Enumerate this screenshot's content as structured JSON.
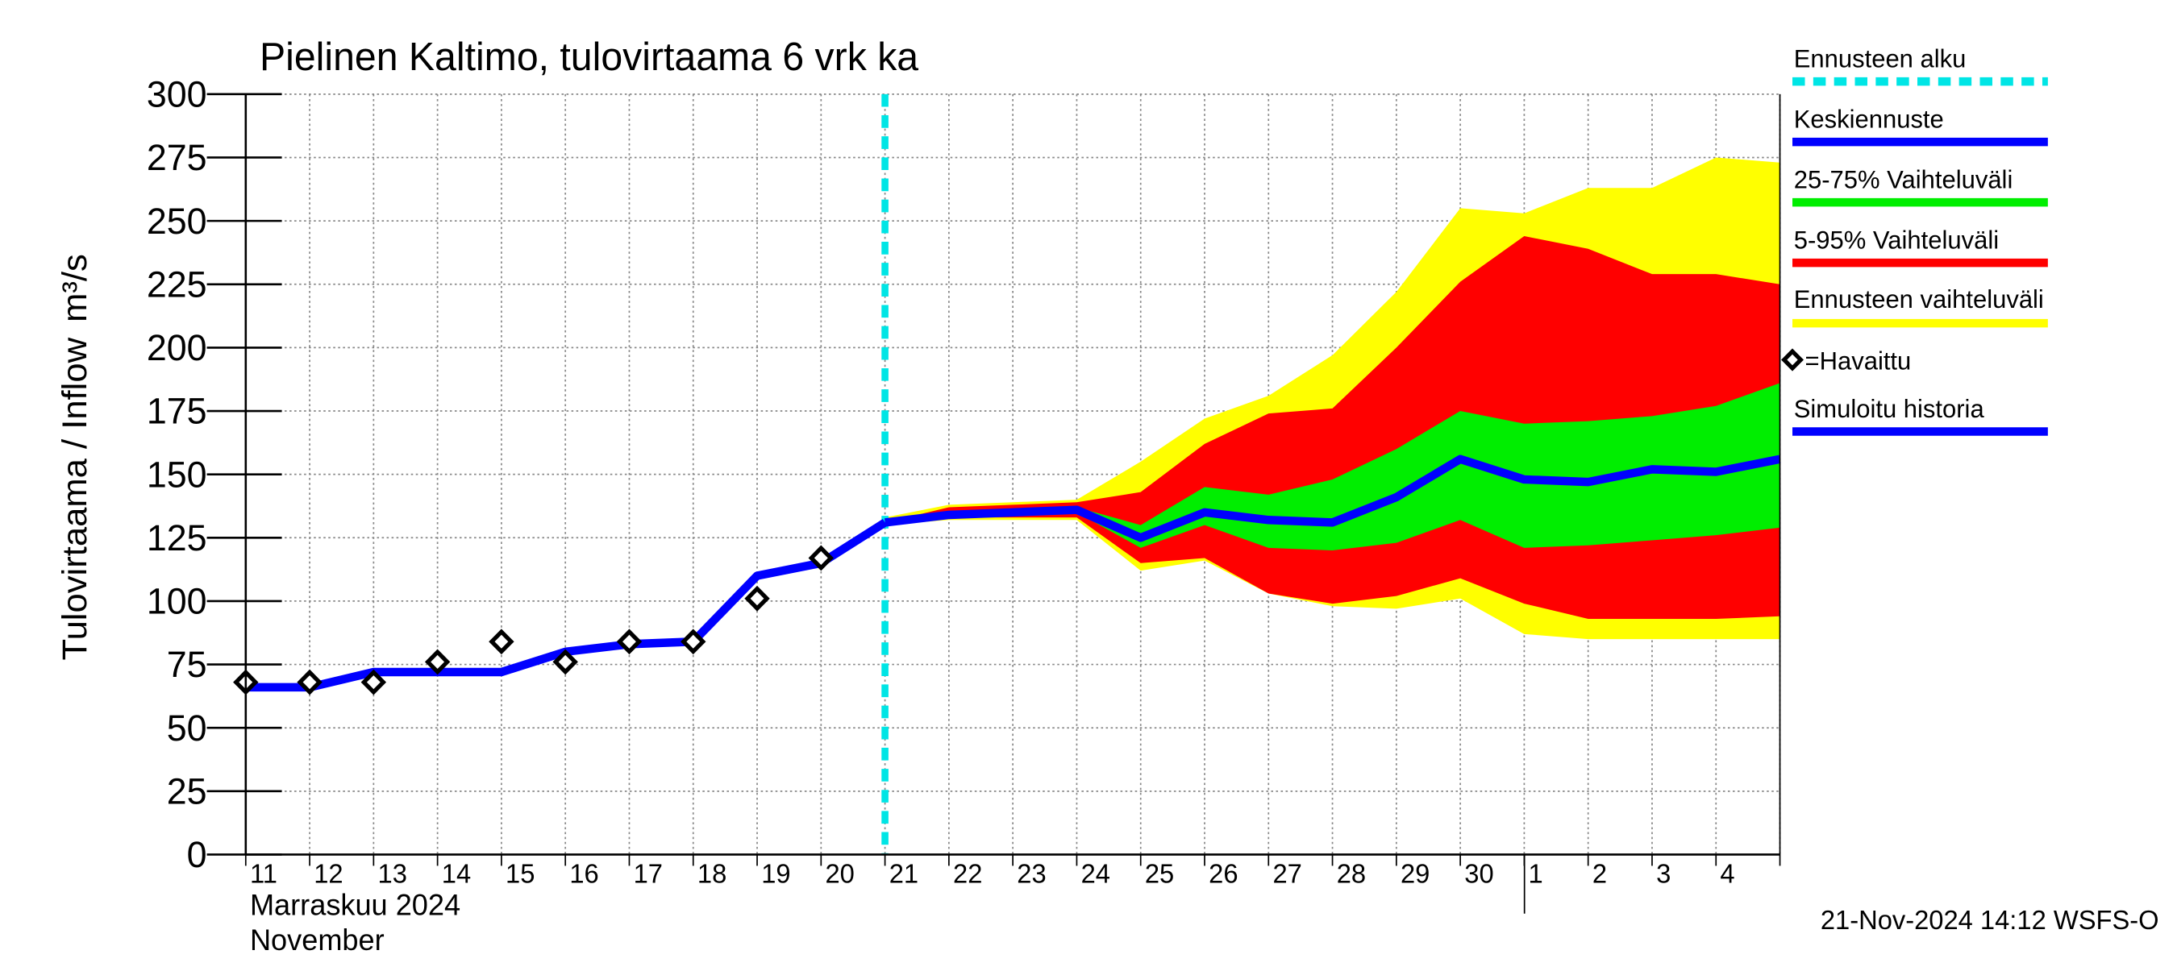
{
  "chart_data": {
    "type": "band-forecast",
    "title": "Pielinen Kaltimo, tulovirtaama  6 vrk ka",
    "y_label": "Tulovirtaama / Inflow",
    "y_unit": "m³/s",
    "x_label_1": "Marraskuu 2024",
    "x_label_2": "November",
    "footer": "21-Nov-2024 14:12 WSFS-O",
    "categories": [
      "11",
      "12",
      "13",
      "14",
      "15",
      "16",
      "17",
      "18",
      "19",
      "20",
      "21",
      "22",
      "23",
      "24",
      "25",
      "26",
      "27",
      "28",
      "29",
      "30",
      "1",
      "2",
      "3",
      "4",
      null
    ],
    "ylim": [
      0,
      300
    ],
    "yticks": [
      0,
      25,
      50,
      75,
      100,
      125,
      150,
      175,
      200,
      225,
      250,
      275,
      300
    ],
    "grid": true,
    "forecast_start": {
      "name": "Ennusteen alku",
      "x": 10,
      "color": "#00e5e5"
    },
    "bands": [
      {
        "name": "Ennusteen vaihteluväli",
        "color": "#ffff00",
        "low": [
          null,
          null,
          null,
          null,
          null,
          null,
          null,
          null,
          null,
          null,
          130,
          132,
          132,
          132,
          112,
          116,
          103,
          98,
          97,
          101,
          87,
          85,
          85,
          85,
          85
        ],
        "high": [
          null,
          null,
          null,
          null,
          null,
          null,
          null,
          null,
          null,
          null,
          133,
          138,
          139,
          140,
          155,
          172,
          181,
          197,
          222,
          255,
          253,
          263,
          263,
          275,
          273
        ]
      },
      {
        "name": "5-95% Vaihteluväli",
        "color": "#ff0000",
        "low": [
          null,
          null,
          null,
          null,
          null,
          null,
          null,
          null,
          null,
          null,
          130,
          133,
          133,
          133,
          115,
          117,
          103,
          99,
          102,
          109,
          99,
          93,
          93,
          93,
          94
        ],
        "high": [
          null,
          null,
          null,
          null,
          null,
          null,
          null,
          null,
          null,
          null,
          131,
          137,
          138,
          139,
          143,
          162,
          174,
          176,
          200,
          226,
          244,
          239,
          229,
          229,
          225
        ]
      },
      {
        "name": "25-75% Vaihteluväli",
        "color": "#00ee00",
        "low": [
          null,
          null,
          null,
          null,
          null,
          null,
          null,
          null,
          null,
          null,
          130,
          134,
          134,
          135,
          121,
          130,
          121,
          120,
          123,
          132,
          121,
          122,
          124,
          126,
          129
        ],
        "high": [
          null,
          null,
          null,
          null,
          null,
          null,
          null,
          null,
          null,
          null,
          131,
          135,
          136,
          137,
          130,
          145,
          142,
          148,
          160,
          175,
          170,
          171,
          173,
          177,
          186
        ]
      }
    ],
    "series": [
      {
        "name": "Simuloitu historia",
        "color": "#0000ff",
        "values": [
          66,
          66,
          72,
          72,
          72,
          80,
          83,
          84,
          110,
          115,
          131,
          null,
          null,
          null,
          null,
          null,
          null,
          null,
          null,
          null,
          null,
          null,
          null,
          null,
          null
        ]
      },
      {
        "name": "Keskiennuste",
        "color": "#0000ff",
        "values": [
          null,
          null,
          null,
          null,
          null,
          null,
          null,
          null,
          null,
          null,
          131,
          134,
          135,
          136,
          125,
          135,
          132,
          131,
          141,
          156,
          148,
          147,
          152,
          151,
          156
        ]
      }
    ],
    "observed": {
      "name": "=Havaittu",
      "color": "#000000",
      "values": [
        68,
        68,
        68,
        76,
        84,
        76,
        84,
        84,
        101,
        117,
        null,
        null,
        null,
        null,
        null,
        null,
        null,
        null,
        null,
        null,
        null,
        null,
        null,
        null,
        null
      ]
    }
  }
}
